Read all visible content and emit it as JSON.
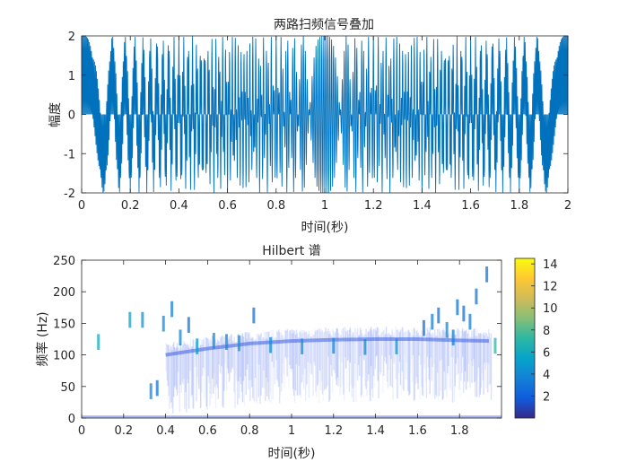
{
  "chart_data": [
    {
      "type": "line",
      "title": "两路扫频信号叠加",
      "xlabel": "时间(秒)",
      "ylabel": "幅度",
      "xlim": [
        0,
        2
      ],
      "ylim": [
        -2,
        2
      ],
      "xticks": [
        "0",
        "0.2",
        "0.4",
        "0.6",
        "0.8",
        "1",
        "1.2",
        "1.4",
        "1.6",
        "1.8",
        "2"
      ],
      "yticks": [
        "-2",
        "-1",
        "0",
        "1",
        "2"
      ],
      "series": [
        {
          "color": "#0072BD",
          "components": [
            {
              "f0_hz": 250,
              "f1_hz": 0
            },
            {
              "f0_hz": 0,
              "f1_hz": 250
            }
          ]
        }
      ],
      "grid": false
    },
    {
      "type": "heatmap",
      "title": "Hilbert 谱",
      "xlabel": "时间(秒)",
      "ylabel": "频率 (Hz)",
      "xlim": [
        0,
        2
      ],
      "ylim": [
        0,
        250
      ],
      "xticks": [
        "0",
        "0.2",
        "0.4",
        "0.6",
        "0.8",
        "1",
        "1.2",
        "1.4",
        "1.6",
        "1.8"
      ],
      "yticks": [
        "0",
        "50",
        "100",
        "150",
        "200",
        "250"
      ],
      "colorbar": {
        "range": [
          0,
          14.5
        ],
        "ticks": [
          "2",
          "4",
          "6",
          "8",
          "10",
          "12",
          "14"
        ],
        "colormap": "parula"
      },
      "ridge": {
        "points": [
          [
            0.4,
            100
          ],
          [
            0.6,
            110
          ],
          [
            0.8,
            118
          ],
          [
            1.0,
            122
          ],
          [
            1.2,
            124
          ],
          [
            1.4,
            125
          ],
          [
            1.6,
            125
          ],
          [
            1.8,
            123
          ],
          [
            1.95,
            122
          ]
        ],
        "spread_hz": 25
      },
      "spikes": [
        {
          "t": 0.08,
          "f": 133,
          "v": 6
        },
        {
          "t": 0.23,
          "f": 168,
          "v": 5.5
        },
        {
          "t": 0.29,
          "f": 168,
          "v": 4.5
        },
        {
          "t": 0.33,
          "f": 55,
          "v": 4
        },
        {
          "t": 0.36,
          "f": 60,
          "v": 3
        },
        {
          "t": 0.39,
          "f": 162,
          "v": 4
        },
        {
          "t": 0.43,
          "f": 185,
          "v": 3.5
        },
        {
          "t": 0.47,
          "f": 140,
          "v": 4
        },
        {
          "t": 0.51,
          "f": 160,
          "v": 3
        },
        {
          "t": 0.55,
          "f": 126,
          "v": 5
        },
        {
          "t": 0.63,
          "f": 135,
          "v": 4.5
        },
        {
          "t": 0.69,
          "f": 133,
          "v": 4
        },
        {
          "t": 0.75,
          "f": 131,
          "v": 5
        },
        {
          "t": 0.82,
          "f": 175,
          "v": 3
        },
        {
          "t": 0.9,
          "f": 128,
          "v": 4
        },
        {
          "t": 1.05,
          "f": 126,
          "v": 4.5
        },
        {
          "t": 1.2,
          "f": 127,
          "v": 4
        },
        {
          "t": 1.35,
          "f": 125,
          "v": 4
        },
        {
          "t": 1.5,
          "f": 126,
          "v": 4.5
        },
        {
          "t": 1.63,
          "f": 155,
          "v": 3
        },
        {
          "t": 1.67,
          "f": 165,
          "v": 3.5
        },
        {
          "t": 1.7,
          "f": 175,
          "v": 3
        },
        {
          "t": 1.74,
          "f": 152,
          "v": 4
        },
        {
          "t": 1.77,
          "f": 140,
          "v": 3.5
        },
        {
          "t": 1.79,
          "f": 188,
          "v": 3
        },
        {
          "t": 1.82,
          "f": 178,
          "v": 3
        },
        {
          "t": 1.85,
          "f": 165,
          "v": 3.5
        },
        {
          "t": 1.88,
          "f": 205,
          "v": 3
        },
        {
          "t": 1.93,
          "f": 240,
          "v": 3
        },
        {
          "t": 1.97,
          "f": 127,
          "v": 7
        }
      ]
    }
  ]
}
